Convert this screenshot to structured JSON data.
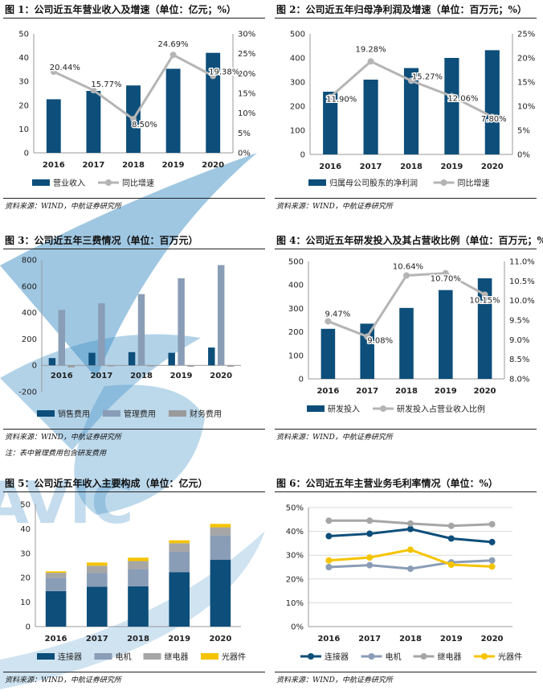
{
  "charts": [
    {
      "title": "图 1：公司近五年营业收入及增速（单位：亿元；%）",
      "source": "资料来源：WIND，中航证券研究所",
      "chart_data": {
        "type": "bar",
        "categories": [
          "2016",
          "2017",
          "2018",
          "2019",
          "2020"
        ],
        "series": [
          {
            "name": "营业收入",
            "kind": "bar",
            "axis": "left",
            "color": "#0d4e7a",
            "values": [
              22.5,
              26.0,
              28.3,
              35.3,
              42.0
            ]
          },
          {
            "name": "同比增速",
            "kind": "line",
            "axis": "right",
            "color": "#b5b5b5",
            "values": [
              20.44,
              15.77,
              8.5,
              24.69,
              19.38
            ],
            "labels": [
              "20.44%",
              "15.77%",
              "8.50%",
              "24.69%",
              "19.38%"
            ]
          }
        ],
        "ylim": [
          0,
          50
        ],
        "yticks": [
          "0",
          "10",
          "20",
          "30",
          "40",
          "50"
        ],
        "y2lim": [
          0,
          30
        ],
        "y2ticks": [
          "0%",
          "5%",
          "10%",
          "15%",
          "20%",
          "25%",
          "30%"
        ],
        "legend": "bottom"
      }
    },
    {
      "title": "图 2：公司近五年归母净利润及增速（单位：百万元；%）",
      "source": "资料来源：WIND，中航证券研究所",
      "chart_data": {
        "type": "bar",
        "categories": [
          "2016",
          "2017",
          "2018",
          "2019",
          "2020"
        ],
        "series": [
          {
            "name": "归属母公司股东的净利润",
            "kind": "bar",
            "axis": "left",
            "color": "#0d4e7a",
            "values": [
              260,
              310,
              358,
              400,
              432
            ]
          },
          {
            "name": "同比增速",
            "kind": "line",
            "axis": "right",
            "color": "#b5b5b5",
            "values": [
              11.9,
              19.28,
              15.27,
              12.06,
              7.8
            ],
            "labels": [
              "11.90%",
              "19.28%",
              "15.27%",
              "12.06%",
              "7.80%"
            ]
          }
        ],
        "ylim": [
          0,
          500
        ],
        "yticks": [
          "0",
          "100",
          "200",
          "300",
          "400",
          "500"
        ],
        "y2lim": [
          0,
          25
        ],
        "y2ticks": [
          "0%",
          "5%",
          "10%",
          "15%",
          "20%",
          "25%"
        ],
        "legend": "bottom"
      }
    },
    {
      "title": "图 3：公司近五年三费情况（单位：百万元）",
      "source": "资料来源：WIND，中航证券研究所",
      "note": "注：表中管理费用包含研发费用",
      "chart_data": {
        "type": "bar",
        "categories": [
          "2016",
          "2017",
          "2018",
          "2019",
          "2020"
        ],
        "series": [
          {
            "name": "销售费用",
            "kind": "bar",
            "axis": "left",
            "color": "#0d4e7a",
            "values": [
              55,
              95,
              100,
              95,
              135
            ]
          },
          {
            "name": "管理费用",
            "kind": "bar",
            "axis": "left",
            "color": "#8a9db6",
            "values": [
              420,
              470,
              540,
              660,
              760
            ]
          },
          {
            "name": "财务费用",
            "kind": "bar",
            "axis": "left",
            "color": "#9a9a9a",
            "values": [
              -15,
              -8,
              -8,
              -10,
              -10
            ]
          }
        ],
        "ylim": [
          -200,
          800
        ],
        "yticks": [
          "-200",
          "0",
          "200",
          "400",
          "600",
          "800"
        ],
        "legend": "bottom"
      }
    },
    {
      "title": "图 4：公司近五年研发投入及其占营收比例（单位：百万元；%）",
      "source": "资料来源：WIND，中航证券研究所",
      "chart_data": {
        "type": "bar",
        "categories": [
          "2016",
          "2017",
          "2018",
          "2019",
          "2020"
        ],
        "series": [
          {
            "name": "研发投入",
            "kind": "bar",
            "axis": "left",
            "color": "#0d4e7a",
            "values": [
              213,
              235,
              302,
              378,
              428
            ]
          },
          {
            "name": "研发投入占营业收入比例",
            "kind": "line",
            "axis": "right",
            "color": "#b5b5b5",
            "values": [
              9.47,
              9.08,
              10.64,
              10.7,
              10.15
            ],
            "labels": [
              "9.47%",
              "9.08%",
              "10.64%",
              "10.70%",
              "10.15%"
            ]
          }
        ],
        "ylim": [
          0,
          500
        ],
        "yticks": [
          "0",
          "100",
          "200",
          "300",
          "400",
          "500"
        ],
        "y2lim": [
          8.0,
          11.0
        ],
        "y2ticks": [
          "8.0%",
          "8.5%",
          "9.0%",
          "9.5%",
          "10.0%",
          "10.5%",
          "11.0%"
        ],
        "legend": "bottom"
      }
    },
    {
      "title": "图 5：公司近五年收入主要构成（单位：亿元）",
      "source": "资料来源：WIND，中航证券研究所",
      "chart_data": {
        "type": "bar",
        "stacked": true,
        "categories": [
          "2016",
          "2017",
          "2018",
          "2019",
          "2020"
        ],
        "series": [
          {
            "name": "连接器",
            "kind": "bar",
            "axis": "left",
            "color": "#0d4e7a",
            "values": [
              14.5,
              16.3,
              16.5,
              22.3,
              27.3
            ]
          },
          {
            "name": "电机",
            "kind": "bar",
            "axis": "left",
            "color": "#8a9db6",
            "values": [
              5.5,
              5.7,
              7.0,
              8.3,
              10.0
            ]
          },
          {
            "name": "继电器",
            "kind": "bar",
            "axis": "left",
            "color": "#a6a6a6",
            "values": [
              2.0,
              2.9,
              3.3,
              3.5,
              3.3
            ]
          },
          {
            "name": "光器件",
            "kind": "bar",
            "axis": "left",
            "color": "#f5c400",
            "values": [
              0.6,
              1.3,
              1.4,
              1.2,
              1.4
            ]
          }
        ],
        "ylim": [
          0,
          50
        ],
        "yticks": [
          "0",
          "10",
          "20",
          "30",
          "40",
          "50"
        ],
        "legend": "bottom"
      }
    },
    {
      "title": "图 6：公司近五年主营业务毛利率情况（单位：%）",
      "source": "资料来源：WIND，中航证券研究所",
      "chart_data": {
        "type": "line",
        "categories": [
          "2016",
          "2017",
          "2018",
          "2019",
          "2020"
        ],
        "series": [
          {
            "name": "连接器",
            "kind": "line",
            "axis": "left",
            "color": "#0d4e7a",
            "values": [
              38,
              39,
              41,
              37,
              35.5
            ]
          },
          {
            "name": "电机",
            "kind": "line",
            "axis": "left",
            "color": "#8a9db6",
            "values": [
              25,
              25.8,
              24.3,
              27,
              27.8
            ]
          },
          {
            "name": "继电器",
            "kind": "line",
            "axis": "left",
            "color": "#a6a6a6",
            "values": [
              44.5,
              44.5,
              43.3,
              42.3,
              43
            ]
          },
          {
            "name": "光器件",
            "kind": "line",
            "axis": "left",
            "color": "#f5c400",
            "values": [
              27.8,
              29,
              32.3,
              26,
              25.2
            ]
          }
        ],
        "ylim": [
          0,
          50
        ],
        "yticks": [
          "0%",
          "10%",
          "20%",
          "30%",
          "40%",
          "50%"
        ],
        "legend": "bottom"
      }
    }
  ],
  "watermark_text": "AVIC"
}
